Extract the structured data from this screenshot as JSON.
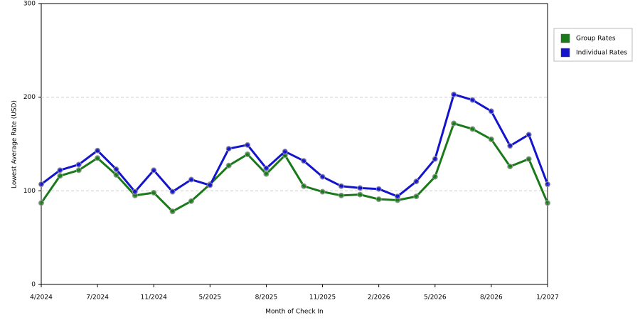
{
  "chart_data": {
    "type": "line",
    "x_label": "Month of Check In",
    "y_label": "Lowest Average Rate (USD)",
    "categories": [
      "4/2024",
      null,
      null,
      "7/2024",
      null,
      null,
      "11/2024",
      null,
      null,
      "5/2025",
      null,
      null,
      "8/2025",
      null,
      null,
      "11/2025",
      null,
      null,
      "2/2026",
      null,
      null,
      "5/2026",
      null,
      null,
      "8/2026",
      null,
      null,
      "1/2027"
    ],
    "series": [
      {
        "name": "Group Rates",
        "color": "#1a7a1a",
        "values": [
          87,
          116,
          122,
          135,
          117,
          95,
          98,
          78,
          89,
          107,
          127,
          139,
          118,
          138,
          105,
          99,
          95,
          96,
          91,
          90,
          94,
          115,
          172,
          166,
          155,
          126,
          134,
          87
        ]
      },
      {
        "name": "Individual Rates",
        "color": "#1414cc",
        "values": [
          107,
          122,
          128,
          143,
          123,
          99,
          122,
          99,
          112,
          106,
          145,
          149,
          124,
          142,
          132,
          115,
          105,
          103,
          102,
          94,
          110,
          134,
          203,
          197,
          185,
          148,
          160,
          107
        ]
      }
    ],
    "ylim": [
      0,
      300
    ],
    "yticks": [
      0,
      100,
      200,
      300
    ],
    "grid": true,
    "legend": "right"
  }
}
